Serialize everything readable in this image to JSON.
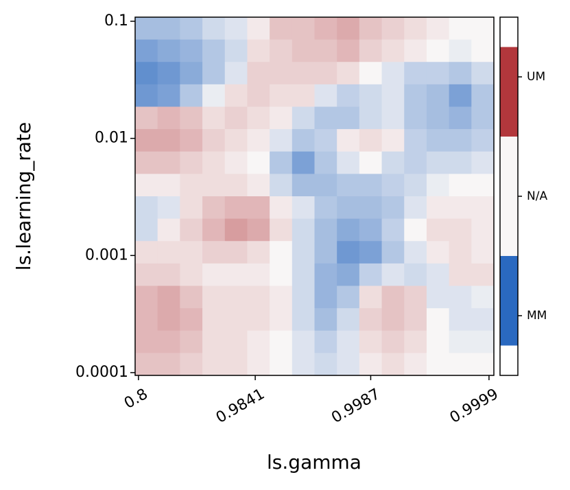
{
  "chart_data": {
    "type": "heatmap",
    "xlabel": "ls.gamma",
    "ylabel": "ls.learning_rate",
    "xscale": "log-one-minus",
    "yscale": "log",
    "xlim": [
      0.785,
      0.99991
    ],
    "xticks": [
      0.8,
      0.9841,
      0.9987,
      0.9999
    ],
    "ylim": [
      9.47e-05,
      0.1084
    ],
    "yticks": [
      0.1,
      0.01,
      0.001,
      0.0001
    ],
    "z": [
      [
        -0.6,
        -0.6,
        -0.5,
        -0.3,
        -0.2,
        0.1,
        0.4,
        0.4,
        0.5,
        0.6,
        0.4,
        0.3,
        0.2,
        0.1,
        0,
        0
      ],
      [
        -0.9,
        -0.8,
        -0.7,
        -0.5,
        -0.3,
        0.2,
        0.3,
        0.4,
        0.4,
        0.5,
        0.3,
        0.2,
        0.1,
        0,
        -0.1,
        0
      ],
      [
        -1.1,
        -1,
        -0.8,
        -0.5,
        -0.2,
        0.3,
        0.3,
        0.3,
        0.3,
        0.2,
        0,
        -0.2,
        -0.4,
        -0.4,
        -0.5,
        -0.3
      ],
      [
        -1,
        -0.9,
        -0.5,
        -0.1,
        0.2,
        0.3,
        0.2,
        0.2,
        -0.2,
        -0.4,
        -0.3,
        -0.2,
        -0.5,
        -0.6,
        -0.9,
        -0.5
      ],
      [
        0.4,
        0.5,
        0.4,
        0.2,
        0.3,
        0.2,
        0.1,
        -0.3,
        -0.5,
        -0.5,
        -0.3,
        -0.2,
        -0.5,
        -0.6,
        -0.7,
        -0.5
      ],
      [
        0.6,
        0.6,
        0.5,
        0.3,
        0.2,
        0.1,
        -0.2,
        -0.5,
        -0.4,
        0.1,
        0.2,
        0.1,
        -0.4,
        -0.5,
        -0.5,
        -0.4
      ],
      [
        0.4,
        0.4,
        0.3,
        0.2,
        0.1,
        0,
        -0.5,
        -0.9,
        -0.5,
        -0.2,
        0,
        -0.3,
        -0.4,
        -0.3,
        -0.3,
        -0.2
      ],
      [
        0.1,
        0.1,
        0.2,
        0.2,
        0.2,
        0.1,
        -0.3,
        -0.6,
        -0.6,
        -0.5,
        -0.5,
        -0.4,
        -0.3,
        -0.1,
        0,
        0
      ],
      [
        -0.3,
        -0.2,
        0.2,
        0.4,
        0.5,
        0.5,
        0.1,
        -0.2,
        -0.5,
        -0.6,
        -0.6,
        -0.5,
        -0.2,
        0.1,
        0.1,
        0.1
      ],
      [
        -0.3,
        0.1,
        0.3,
        0.5,
        0.7,
        0.6,
        0.2,
        -0.3,
        -0.6,
        -0.8,
        -0.7,
        -0.4,
        0,
        0.2,
        0.2,
        0.1
      ],
      [
        0.2,
        0.2,
        0.2,
        0.3,
        0.3,
        0.2,
        0,
        -0.3,
        -0.6,
        -1,
        -0.9,
        -0.5,
        -0.2,
        0.1,
        0.2,
        0.1
      ],
      [
        0.3,
        0.3,
        0.2,
        0.1,
        0.1,
        0.1,
        0,
        -0.3,
        -0.7,
        -0.8,
        -0.4,
        -0.2,
        -0.3,
        -0.2,
        0.2,
        0.2
      ],
      [
        0.5,
        0.6,
        0.4,
        0.2,
        0.2,
        0.2,
        0.1,
        -0.3,
        -0.7,
        -0.5,
        0.2,
        0.4,
        0.3,
        -0.2,
        -0.2,
        -0.1
      ],
      [
        0.5,
        0.6,
        0.5,
        0.2,
        0.2,
        0.2,
        0.1,
        -0.3,
        -0.6,
        -0.3,
        0.3,
        0.4,
        0.3,
        0,
        -0.2,
        -0.2
      ],
      [
        0.5,
        0.5,
        0.4,
        0.2,
        0.2,
        0.1,
        0,
        -0.2,
        -0.4,
        -0.2,
        0.2,
        0.3,
        0.2,
        0,
        -0.1,
        -0.1
      ],
      [
        0.4,
        0.4,
        0.3,
        0.2,
        0.2,
        0.1,
        0,
        -0.2,
        -0.3,
        -0.2,
        0.1,
        0.2,
        0.1,
        0,
        0,
        0
      ]
    ],
    "colors": {
      "low": "#2a69c0",
      "mid": "#f8f6f6",
      "high": "#b2373c"
    },
    "colorbar": {
      "ylim": [
        -1.5,
        1.5
      ],
      "ticks": [
        {
          "value": -1,
          "label": "MM"
        },
        {
          "value": 0,
          "label": "N/A"
        },
        {
          "value": 1,
          "label": "UM"
        }
      ]
    }
  }
}
